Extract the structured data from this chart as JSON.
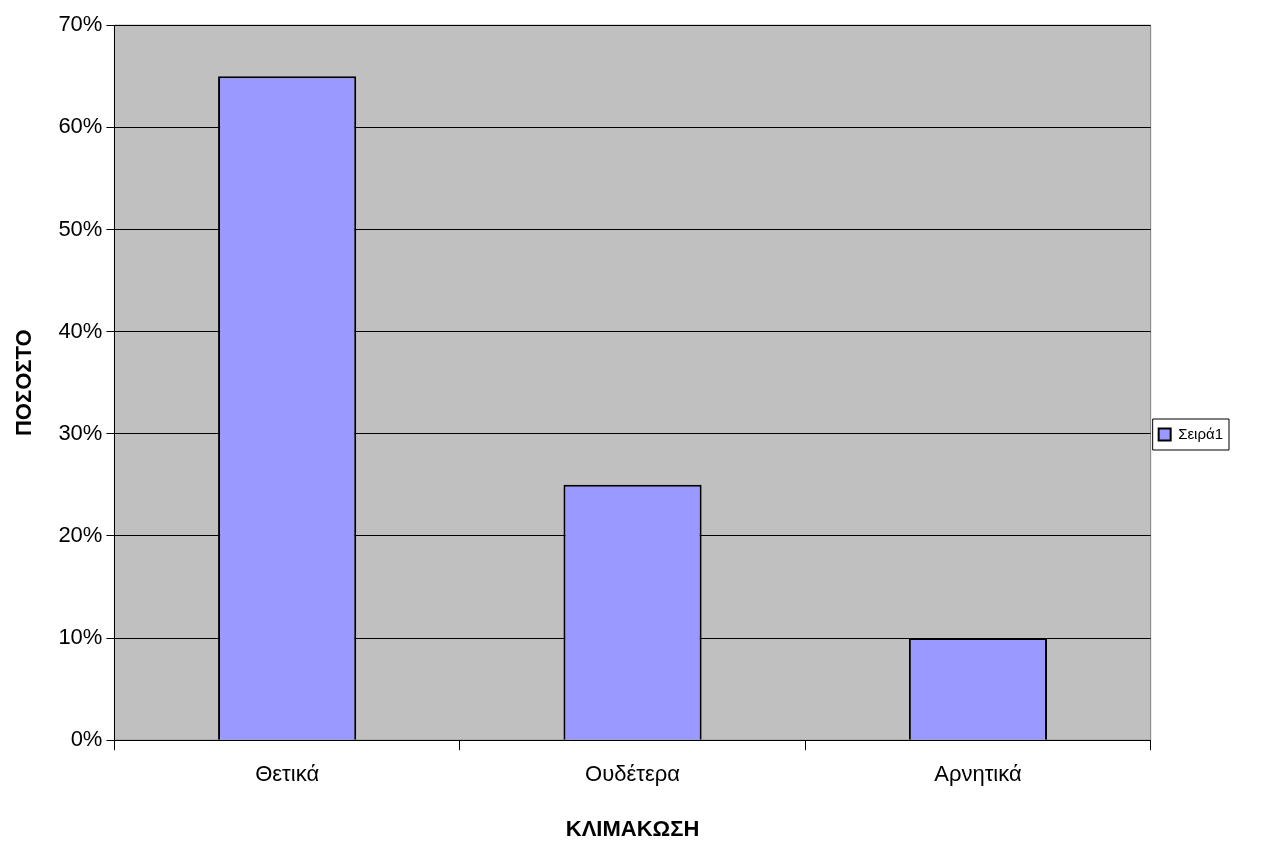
{
  "chart_data": {
    "type": "bar",
    "xlabel": "ΚΛΙΜΑΚΩΣΗ",
    "ylabel": "ΠΟΣΟΣΤΟ",
    "categories": [
      "Θετικά",
      "Ουδέτερα",
      "Αρνητικά"
    ],
    "series": [
      {
        "name": "Σειρά1",
        "color": "#9999ff",
        "values": [
          65,
          25,
          10
        ]
      }
    ],
    "ylim": [
      0,
      70
    ],
    "yticks": [
      {
        "value": 0,
        "label": "0%"
      },
      {
        "value": 10,
        "label": "10%"
      },
      {
        "value": 20,
        "label": "20%"
      },
      {
        "value": 30,
        "label": "30%"
      },
      {
        "value": 40,
        "label": "40%"
      },
      {
        "value": 50,
        "label": "50%"
      },
      {
        "value": 60,
        "label": "60%"
      },
      {
        "value": 70,
        "label": "70%"
      }
    ],
    "grid": "y",
    "legend": "right"
  }
}
